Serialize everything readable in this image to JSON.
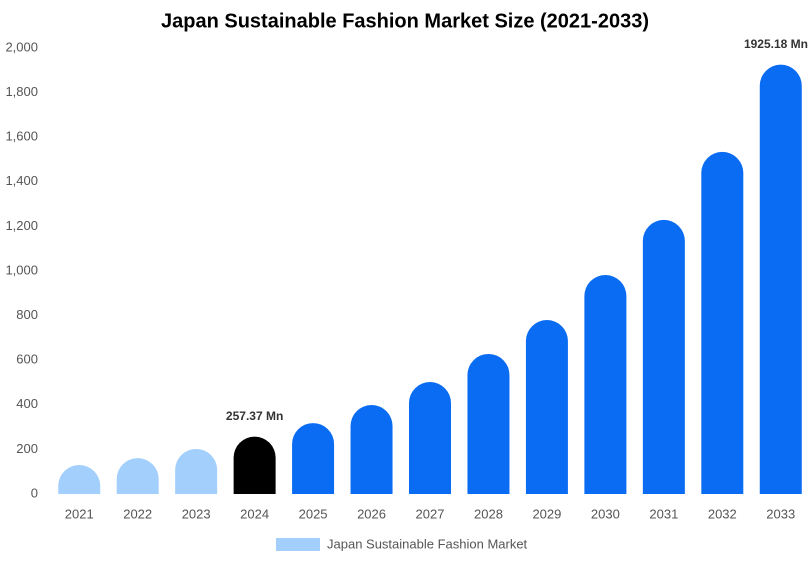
{
  "chart_data": {
    "type": "bar",
    "title": "Japan Sustainable Fashion Market Size (2021-2033)",
    "categories": [
      "2021",
      "2022",
      "2023",
      "2024",
      "2025",
      "2026",
      "2027",
      "2028",
      "2029",
      "2030",
      "2031",
      "2032",
      "2033"
    ],
    "series": [
      {
        "name": "Japan Sustainable Fashion Market",
        "color": "#a3cffd",
        "values": [
          130,
          161,
          202,
          257.37,
          318,
          399,
          502,
          628,
          780,
          982,
          1229,
          1534,
          1925.18
        ],
        "value_labels": [
          null,
          null,
          null,
          "257.37 Mn",
          null,
          null,
          null,
          null,
          null,
          null,
          null,
          null,
          "1925.18 Mn"
        ],
        "colors": [
          "#a3cffd",
          "#a3cffd",
          "#a3cffd",
          "#000000",
          "#0a6cf2",
          "#0a6cf2",
          "#0a6cf2",
          "#0a6cf2",
          "#0a6cf2",
          "#0a6cf2",
          "#0a6cf2",
          "#0a6cf2",
          "#0a6cf2"
        ]
      }
    ],
    "ylim": [
      0,
      2000
    ],
    "yticks": [
      0,
      200,
      400,
      600,
      800,
      {
        "value": 1000,
        "label": "1,000"
      },
      {
        "value": 1200,
        "label": "1,200"
      },
      {
        "value": 1400,
        "label": "1,400"
      },
      {
        "value": 1600,
        "label": "1,600"
      },
      {
        "value": 1800,
        "label": "1,800"
      },
      {
        "value": 2000,
        "label": "2,000"
      }
    ],
    "legend": "bottom"
  }
}
